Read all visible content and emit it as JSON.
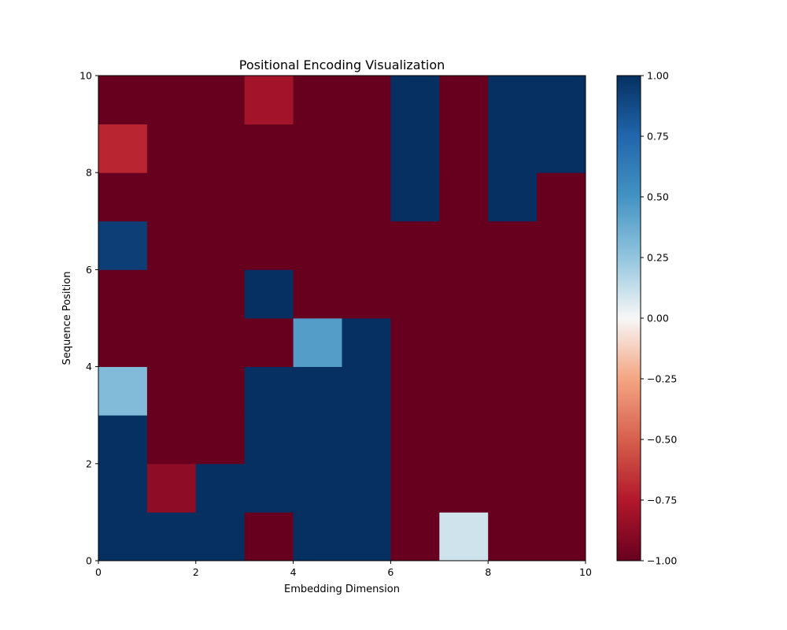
{
  "chart_data": {
    "type": "heatmap",
    "title": "Positional Encoding Visualization",
    "xlabel": "Embedding Dimension",
    "ylabel": "Sequence Position",
    "xlim": [
      0,
      10
    ],
    "ylim": [
      0,
      10
    ],
    "x_ticks": [
      "0",
      "2",
      "4",
      "6",
      "8",
      "10"
    ],
    "y_ticks": [
      "0",
      "2",
      "4",
      "6",
      "8",
      "10"
    ],
    "colormap": "RdBu",
    "color_range": [
      -1.0,
      1.0
    ],
    "colorbar_ticks": [
      "1.00",
      "0.75",
      "0.50",
      "0.25",
      "0.00",
      "−0.25",
      "−0.50",
      "−0.75",
      "−1.00"
    ],
    "grid": false,
    "row_order": "position 0 to 9 (bottom to top)",
    "values": [
      [
        1.0,
        1.0,
        1.0,
        -1.0,
        1.0,
        1.0,
        -1.0,
        0.1,
        -1.0,
        -1.0
      ],
      [
        1.0,
        -0.87,
        1.0,
        1.0,
        1.0,
        1.0,
        -1.0,
        -1.0,
        -1.0,
        -1.0
      ],
      [
        1.0,
        -1.0,
        -1.0,
        1.0,
        1.0,
        1.0,
        -1.0,
        -1.0,
        -1.0,
        -1.0
      ],
      [
        0.3,
        -1.0,
        -1.0,
        1.0,
        1.0,
        1.0,
        -1.0,
        -1.0,
        -1.0,
        -1.0
      ],
      [
        -1.0,
        -1.0,
        -1.0,
        -1.0,
        0.45,
        1.0,
        -1.0,
        -1.0,
        -1.0,
        -1.0
      ],
      [
        -1.0,
        -1.0,
        -1.0,
        1.0,
        -1.0,
        -1.0,
        -1.0,
        -1.0,
        -1.0,
        -1.0
      ],
      [
        0.93,
        -1.0,
        -1.0,
        -1.0,
        -1.0,
        -1.0,
        -1.0,
        -1.0,
        -1.0,
        -1.0
      ],
      [
        -1.0,
        -1.0,
        -1.0,
        -1.0,
        -1.0,
        -1.0,
        1.0,
        -1.0,
        1.0,
        -1.0
      ],
      [
        -0.7,
        -1.0,
        -1.0,
        -1.0,
        -1.0,
        -1.0,
        1.0,
        -1.0,
        1.0,
        1.0
      ],
      [
        -1.0,
        -1.0,
        -1.0,
        -0.8,
        -1.0,
        -1.0,
        1.0,
        -1.0,
        1.0,
        1.0
      ]
    ]
  }
}
